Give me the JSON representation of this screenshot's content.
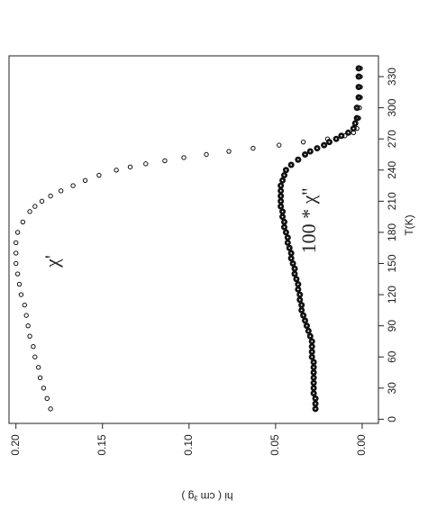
{
  "chart_data": {
    "type": "scatter",
    "orientation": "rotated",
    "x_label": "T(K)",
    "y_label": "hi ( cm  ³g )",
    "annotations": [
      "χ'",
      "100 * χ''"
    ],
    "xlim": [
      -4,
      350
    ],
    "xticks": [
      0,
      30,
      60,
      90,
      120,
      150,
      180,
      210,
      240,
      270,
      300,
      330
    ],
    "ylim": [
      -0.0094,
      0.204
    ],
    "yticks": [
      {
        "value": 0,
        "label": "0.00"
      },
      {
        "value": 0.05,
        "label": "0.05"
      },
      {
        "value": 0.1,
        "label": "0.10"
      },
      {
        "value": 0.15,
        "label": "0.15"
      },
      {
        "value": 0.2,
        "label": "0.20"
      }
    ],
    "series": [
      {
        "name": "χ'",
        "color": "#111111",
        "x": [
          10,
          20,
          30,
          40,
          50,
          60,
          70,
          80,
          90,
          100,
          110,
          120,
          130,
          140,
          150,
          160,
          170,
          180,
          190,
          200,
          205,
          210,
          215,
          220,
          225,
          230,
          235,
          240,
          243,
          246,
          249,
          252,
          255,
          258,
          261,
          264,
          267,
          270,
          273,
          276,
          280,
          290,
          300,
          310,
          320,
          330,
          338
        ],
        "values": [
          0.18,
          0.182,
          0.184,
          0.186,
          0.187,
          0.189,
          0.19,
          0.192,
          0.193,
          0.194,
          0.195,
          0.197,
          0.198,
          0.199,
          0.2,
          0.2,
          0.2,
          0.199,
          0.196,
          0.192,
          0.189,
          0.185,
          0.18,
          0.174,
          0.167,
          0.16,
          0.152,
          0.142,
          0.134,
          0.125,
          0.114,
          0.103,
          0.09,
          0.077,
          0.063,
          0.048,
          0.034,
          0.02,
          0.01,
          0.005,
          0.003,
          0.002,
          0.0015,
          0.001,
          0.001,
          0.001,
          0.001
        ]
      },
      {
        "name": "100 * χ''",
        "color": "#111111",
        "x": [
          10,
          15,
          20,
          25,
          30,
          35,
          40,
          45,
          50,
          55,
          60,
          65,
          70,
          75,
          80,
          85,
          90,
          95,
          100,
          105,
          110,
          115,
          120,
          125,
          130,
          135,
          140,
          145,
          150,
          155,
          160,
          165,
          170,
          175,
          180,
          185,
          190,
          195,
          200,
          205,
          210,
          215,
          220,
          225,
          230,
          235,
          240,
          245,
          250,
          255,
          258,
          261,
          264,
          267,
          270,
          273,
          276,
          280,
          285,
          290,
          300,
          310,
          320,
          330,
          338
        ],
        "values": [
          0.027,
          0.027,
          0.027,
          0.028,
          0.028,
          0.028,
          0.028,
          0.028,
          0.028,
          0.028,
          0.029,
          0.029,
          0.029,
          0.029,
          0.03,
          0.031,
          0.032,
          0.033,
          0.034,
          0.035,
          0.035,
          0.036,
          0.036,
          0.037,
          0.037,
          0.038,
          0.039,
          0.039,
          0.04,
          0.041,
          0.041,
          0.042,
          0.043,
          0.043,
          0.044,
          0.045,
          0.045,
          0.046,
          0.046,
          0.047,
          0.047,
          0.047,
          0.047,
          0.047,
          0.046,
          0.045,
          0.044,
          0.041,
          0.037,
          0.033,
          0.03,
          0.026,
          0.022,
          0.019,
          0.015,
          0.012,
          0.008,
          0.005,
          0.004,
          0.003,
          0.003,
          0.002,
          0.002,
          0.002,
          0.002
        ]
      }
    ]
  }
}
